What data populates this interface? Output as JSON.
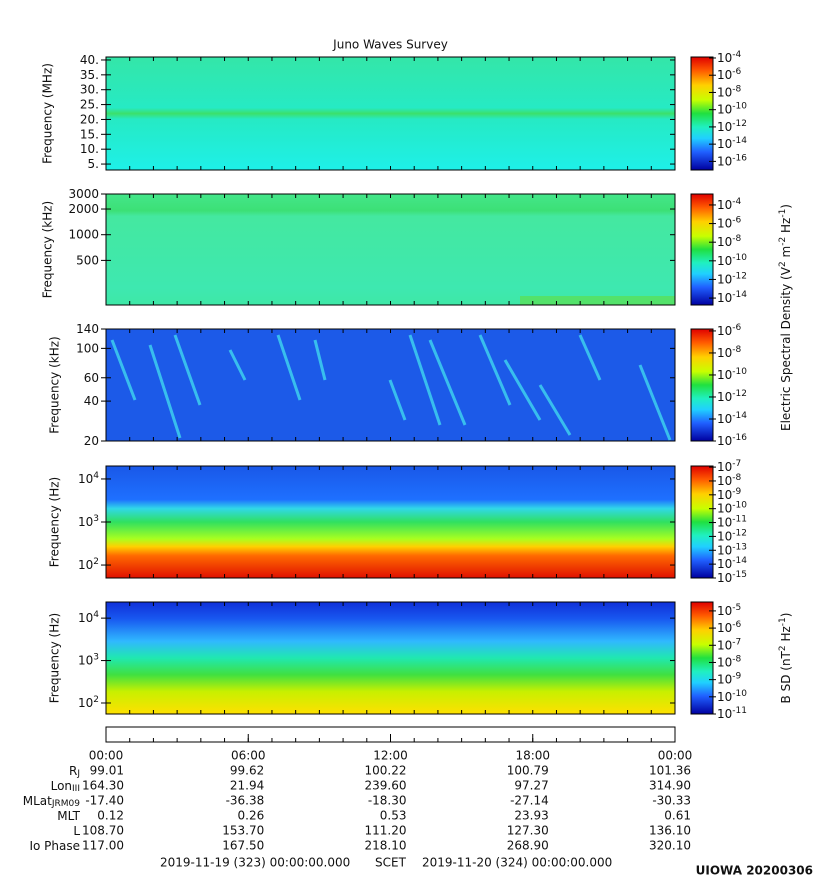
{
  "chart_data": [
    {
      "type": "heatmap",
      "title": "Juno Waves Survey",
      "ylabel": "Frequency (MHz)",
      "ylog": false,
      "ylim": [
        3,
        41
      ],
      "yticks": [
        {
          "value": 5,
          "label": "5."
        },
        {
          "value": 10,
          "label": "10."
        },
        {
          "value": 15,
          "label": "15."
        },
        {
          "value": 20,
          "label": "20."
        },
        {
          "value": 25,
          "label": "25."
        },
        {
          "value": 30,
          "label": "30."
        },
        {
          "value": 35,
          "label": "35."
        },
        {
          "value": 40,
          "label": "40."
        }
      ],
      "xlim": [
        0,
        24
      ],
      "xminor": 1,
      "colorbar": {
        "log": true,
        "lim": [
          1e-17,
          0.00013
        ],
        "ticks": [
          {
            "value": 0.0001,
            "label": "10",
            "sup": "-4"
          },
          {
            "value": 1e-06,
            "label": "10",
            "sup": "-6"
          },
          {
            "value": 1e-08,
            "label": "10",
            "sup": "-8"
          },
          {
            "value": 1e-10,
            "label": "10",
            "sup": "-10"
          },
          {
            "value": 1e-12,
            "label": "10",
            "sup": "-12"
          },
          {
            "value": 1e-14,
            "label": "10",
            "sup": "-14"
          },
          {
            "value": 1e-16,
            "label": "10",
            "sup": "-16"
          }
        ]
      }
    },
    {
      "type": "heatmap",
      "ylabel": "Frequency (kHz)",
      "ylog": true,
      "ylim": [
        150,
        3000
      ],
      "yticks": [
        500,
        1000,
        2000,
        3000
      ],
      "xlim": [
        0,
        24
      ],
      "xminor": 1,
      "colorbar": {
        "log": true,
        "lim": [
          1.8e-15,
          0.0015
        ],
        "ticks": [
          {
            "value": 0.0001,
            "label": "10",
            "sup": "-4"
          },
          {
            "value": 1e-06,
            "label": "10",
            "sup": "-6"
          },
          {
            "value": 1e-08,
            "label": "10",
            "sup": "-8"
          },
          {
            "value": 1e-10,
            "label": "10",
            "sup": "-10"
          },
          {
            "value": 1e-12,
            "label": "10",
            "sup": "-12"
          },
          {
            "value": 1e-14,
            "label": "10",
            "sup": "-14"
          }
        ],
        "label": [
          {
            "text": "Electric Spectral Density (V"
          },
          {
            "sup": "2"
          },
          {
            "text": " m"
          },
          {
            "sup": "-2"
          },
          {
            "text": " Hz"
          },
          {
            "sup": "-1"
          },
          {
            "text": ")"
          }
        ]
      }
    },
    {
      "type": "heatmap",
      "ylabel": "Frequency (kHz)",
      "ylog": true,
      "ylim": [
        20,
        140
      ],
      "yticks": [
        20,
        40,
        60,
        100,
        140
      ],
      "xlim": [
        0,
        24
      ],
      "xminor": 1,
      "colorbar": {
        "log": true,
        "lim": [
          1e-16,
          1.5e-06
        ],
        "ticks": [
          {
            "value": 1e-06,
            "label": "10",
            "sup": "-6"
          },
          {
            "value": 1e-08,
            "label": "10",
            "sup": "-8"
          },
          {
            "value": 1e-10,
            "label": "10",
            "sup": "-10"
          },
          {
            "value": 1e-12,
            "label": "10",
            "sup": "-12"
          },
          {
            "value": 1e-14,
            "label": "10",
            "sup": "-14"
          },
          {
            "value": 1e-16,
            "label": "10",
            "sup": "-16"
          }
        ]
      }
    },
    {
      "type": "heatmap",
      "ylabel": "Frequency (Hz)",
      "ylog": true,
      "ylim": [
        50,
        20000
      ],
      "yticks": [
        {
          "value": 100,
          "label": "10",
          "sup": "2"
        },
        {
          "value": 1000,
          "label": "10",
          "sup": "3"
        },
        {
          "value": 10000,
          "label": "10",
          "sup": "4"
        }
      ],
      "xlim": [
        0,
        24
      ],
      "xminor": 1,
      "colorbar": {
        "log": true,
        "lim": [
          1e-15,
          1.2e-07
        ],
        "ticks": [
          {
            "value": 1e-07,
            "label": "10",
            "sup": "-7"
          },
          {
            "value": 1e-08,
            "label": "10",
            "sup": "-8"
          },
          {
            "value": 1e-09,
            "label": "10",
            "sup": "-9"
          },
          {
            "value": 1e-10,
            "label": "10",
            "sup": "-10"
          },
          {
            "value": 1e-11,
            "label": "10",
            "sup": "-11"
          },
          {
            "value": 1e-12,
            "label": "10",
            "sup": "-12"
          },
          {
            "value": 1e-13,
            "label": "10",
            "sup": "-13"
          },
          {
            "value": 1e-14,
            "label": "10",
            "sup": "-14"
          },
          {
            "value": 1e-15,
            "label": "10",
            "sup": "-15"
          }
        ]
      }
    },
    {
      "type": "heatmap",
      "ylabel": "Frequency (Hz)",
      "ylog": true,
      "ylim": [
        55,
        24000
      ],
      "yticks": [
        {
          "value": 100,
          "label": "10",
          "sup": "2"
        },
        {
          "value": 1000,
          "label": "10",
          "sup": "3"
        },
        {
          "value": 10000,
          "label": "10",
          "sup": "4"
        }
      ],
      "xlim": [
        0,
        24
      ],
      "xminor": 1,
      "colorbar": {
        "log": true,
        "lim": [
          1e-11,
          3.3e-05
        ],
        "ticks": [
          {
            "value": 1e-05,
            "label": "10",
            "sup": "-5"
          },
          {
            "value": 1e-06,
            "label": "10",
            "sup": "-6"
          },
          {
            "value": 1e-07,
            "label": "10",
            "sup": "-7"
          },
          {
            "value": 1e-08,
            "label": "10",
            "sup": "-8"
          },
          {
            "value": 1e-09,
            "label": "10",
            "sup": "-9"
          },
          {
            "value": 1e-10,
            "label": "10",
            "sup": "-10"
          },
          {
            "value": 1e-11,
            "label": "10",
            "sup": "-11"
          }
        ],
        "label": [
          {
            "text": "B SD (nT"
          },
          {
            "sup": "2"
          },
          {
            "text": " Hz"
          },
          {
            "sup": "-1"
          },
          {
            "text": ")"
          }
        ]
      }
    }
  ],
  "time_axis": {
    "xlim": [
      0,
      24
    ],
    "xminor": 1,
    "xticks": [
      {
        "value": 0,
        "label": "00:00"
      },
      {
        "value": 6,
        "label": "06:00"
      },
      {
        "value": 12,
        "label": "12:00"
      },
      {
        "value": 18,
        "label": "18:00"
      },
      {
        "value": 24,
        "label": "00:00"
      }
    ]
  },
  "ephemeris": [
    {
      "label": "R",
      "sub": "J",
      "values": [
        "99.01",
        "99.62",
        "100.22",
        "100.79",
        "101.36"
      ]
    },
    {
      "label": "Lon",
      "sub": "III",
      "values": [
        "164.30",
        "21.94",
        "239.60",
        "97.27",
        "314.90"
      ]
    },
    {
      "label": "MLat",
      "sub": "JRM09",
      "values": [
        "-17.40",
        "-36.38",
        "-18.30",
        "-27.14",
        "-30.33"
      ]
    },
    {
      "label": "MLT",
      "values": [
        "0.12",
        "0.26",
        "0.53",
        "23.93",
        "0.61"
      ]
    },
    {
      "label": "L",
      "values": [
        "108.70",
        "153.70",
        "111.20",
        "127.30",
        "136.10"
      ]
    },
    {
      "label": "Io Phase",
      "values": [
        "117.00",
        "167.50",
        "218.10",
        "268.90",
        "320.10"
      ]
    }
  ],
  "footer": {
    "start": "2019-11-19 (323) 00:00:00.000",
    "middle": "SCET",
    "end": "2019-11-20 (324) 00:00:00.000",
    "stamp": "UIOWA 20200306"
  }
}
